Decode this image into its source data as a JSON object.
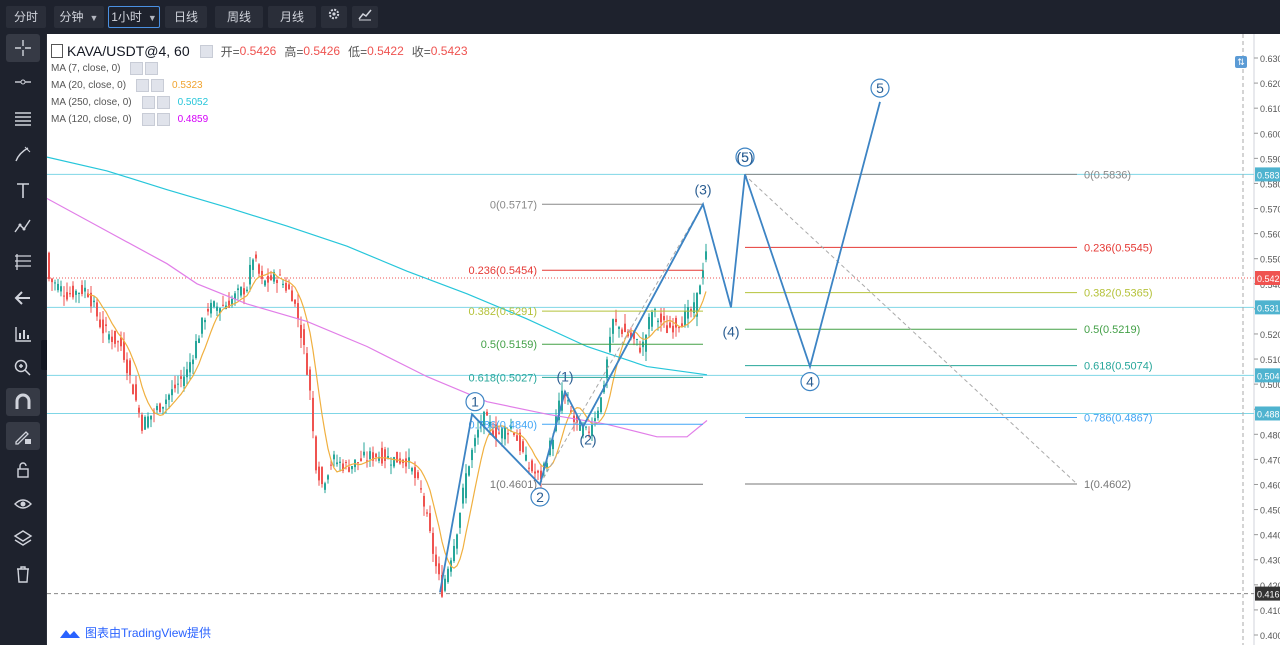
{
  "toolbar": {
    "fenshi": "分时",
    "interval_unit": "分钟",
    "interval_value": "1小时",
    "daily": "日线",
    "weekly": "周线",
    "monthly": "月线"
  },
  "legend": {
    "symbol": "KAVA/USDT@4, 60",
    "open_label": "开=",
    "open": "0.5426",
    "high_label": "高=",
    "high": "0.5426",
    "low_label": "低=",
    "low": "0.5422",
    "close_label": "收=",
    "close": "0.5423"
  },
  "ma": [
    {
      "label": "MA (7, close, 0)",
      "value": "",
      "color": "#f44336"
    },
    {
      "label": "MA (20, close, 0)",
      "value": "0.5323",
      "color": "#f0a32f"
    },
    {
      "label": "MA (250, close, 0)",
      "value": "0.5052",
      "color": "#26c6da"
    },
    {
      "label": "MA (120, close, 0)",
      "value": "0.4859",
      "color": "#d500f9"
    }
  ],
  "footer": {
    "text": "图表由TradingView提供"
  },
  "chart_data": {
    "type": "candlestick",
    "y_range": [
      0.4,
      0.63
    ],
    "y_ticks": [
      "0.630",
      "0.620",
      "0.610",
      "0.600",
      "0.590",
      "0.580",
      "0.570",
      "0.560",
      "0.550",
      "0.540",
      "0.530",
      "0.520",
      "0.510",
      "0.500",
      "0.490",
      "0.480",
      "0.470",
      "0.460",
      "0.450",
      "0.440",
      "0.430",
      "0.420",
      "0.410",
      "0.400"
    ],
    "price_labels": [
      "0.583",
      "0.542",
      "0.531",
      "0.504",
      "0.488",
      "0.416"
    ],
    "price_label_colors": [
      "#4fb3cf",
      "#ef5350",
      "#4fb3cf",
      "#4fb3cf",
      "#4fb3cf",
      "#333333"
    ],
    "current_price": 0.5423,
    "fib_left": [
      {
        "text": "0(0.5717)",
        "color": "#888888"
      },
      {
        "text": "0.236(0.5454)",
        "color": "#e53935"
      },
      {
        "text": "0.382(0.5291)",
        "color": "#b5c23a"
      },
      {
        "text": "0.5(0.5159)",
        "color": "#43a047"
      },
      {
        "text": "0.618(0.5027)",
        "color": "#26a69a"
      },
      {
        "text": "0.786(0.4840)",
        "color": "#42a5f5"
      },
      {
        "text": "1(0.4601)",
        "color": "#777777"
      }
    ],
    "fib_right": [
      {
        "text": "0(0.5836)",
        "color": "#888888"
      },
      {
        "text": "0.236(0.5545)",
        "color": "#e53935"
      },
      {
        "text": "0.382(0.5365)",
        "color": "#b5c23a"
      },
      {
        "text": "0.5(0.5219)",
        "color": "#43a047"
      },
      {
        "text": "0.618(0.5074)",
        "color": "#26a69a"
      },
      {
        "text": "0.786(0.4867)",
        "color": "#42a5f5"
      },
      {
        "text": "1(0.4602)",
        "color": "#777777"
      }
    ],
    "wave_labels": [
      "1",
      "(1)",
      "2",
      "(2)",
      "(3)",
      "(4)",
      "(5)",
      "(5)",
      "4",
      "5"
    ]
  }
}
